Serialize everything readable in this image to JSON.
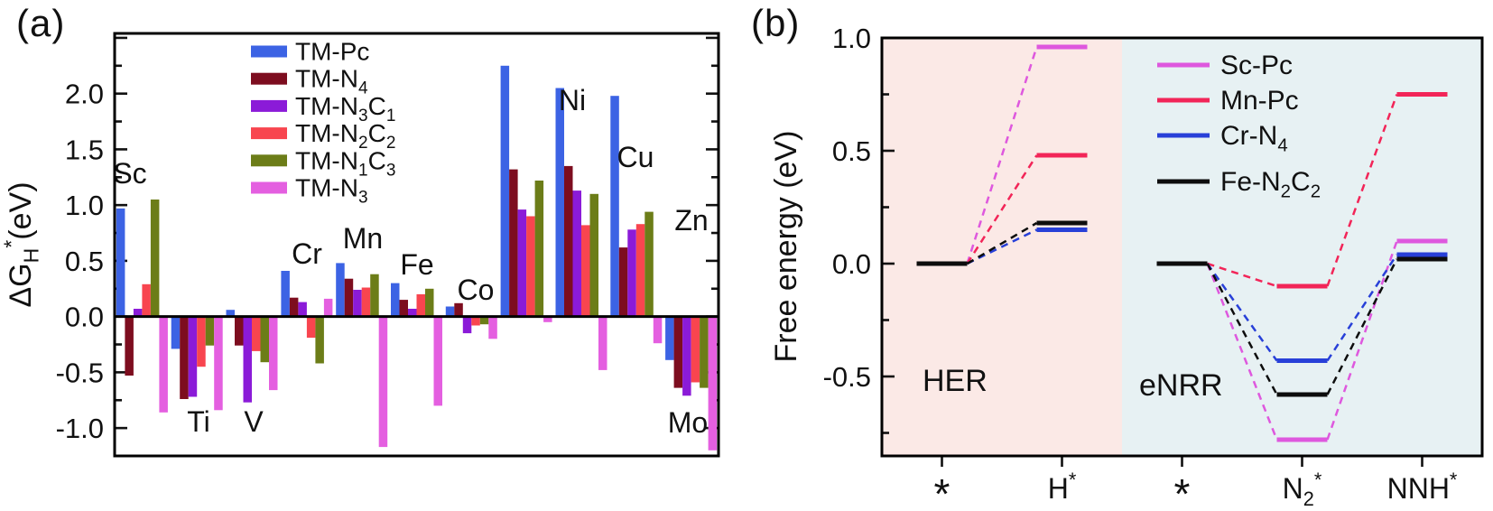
{
  "figure": {
    "panel_a": {
      "letter": "(a)"
    },
    "panel_b": {
      "letter": "(b)"
    }
  },
  "chart_data": [
    {
      "id": "panel-a",
      "type": "bar",
      "title": "",
      "xlabel": "",
      "ylabel": "ΔG_H^*(eV)",
      "ylim": [
        -1.25,
        2.54
      ],
      "yticks_labeled": [
        2.0,
        1.5,
        1.0,
        0.5,
        0.0,
        -0.5,
        -1.0
      ],
      "minor_tick_step": 0.25,
      "legend_position": "top-left-inside",
      "categories": [
        "Sc",
        "Ti",
        "V",
        "Cr",
        "Mn",
        "Fe",
        "Co",
        "Ni",
        "Cu",
        "Zn",
        "Mo"
      ],
      "series": [
        {
          "name": "TM-Pc",
          "color": "#3c63e4",
          "values": [
            0.97,
            -0.29,
            0.06,
            0.41,
            0.48,
            0.3,
            0.09,
            2.25,
            2.05,
            1.98,
            -0.39
          ]
        },
        {
          "name": "TM-N_4",
          "color": "#7d0d1f",
          "values": [
            -0.53,
            -0.74,
            -0.26,
            0.17,
            0.34,
            0.15,
            0.12,
            1.32,
            1.35,
            0.62,
            -0.64
          ]
        },
        {
          "name": "TM-N_3C_1",
          "color": "#8b1bd8",
          "values": [
            0.07,
            -0.72,
            -0.77,
            0.13,
            0.24,
            0.07,
            -0.15,
            0.96,
            1.13,
            0.78,
            -0.71
          ]
        },
        {
          "name": "TM-N_2C_2",
          "color": "#f8454f",
          "values": [
            0.29,
            -0.45,
            -0.31,
            -0.19,
            0.26,
            0.2,
            -0.08,
            0.9,
            0.82,
            0.83,
            -0.59
          ]
        },
        {
          "name": "TM-N_1C_3",
          "color": "#6c7d18",
          "values": [
            1.05,
            -0.26,
            -0.41,
            -0.42,
            0.38,
            0.25,
            -0.07,
            1.22,
            1.1,
            0.94,
            -0.64
          ]
        },
        {
          "name": "TM-N_3",
          "color": "#e45fe0",
          "values": [
            -0.86,
            -0.84,
            -0.66,
            0.16,
            -1.17,
            -0.8,
            -0.2,
            -0.05,
            -0.48,
            -0.24,
            -1.2
          ]
        }
      ]
    },
    {
      "id": "panel-b",
      "type": "line",
      "subtype": "free-energy-level-diagram",
      "title": "",
      "ylabel": "Free energy (eV)",
      "ylim": [
        -0.852,
        1.0
      ],
      "yticks_labeled": [
        1.0,
        0.5,
        0.0,
        -0.5
      ],
      "minor_tick_step": 0.25,
      "x_categories": [
        "*",
        "H^*",
        "*",
        "N_2^*",
        "NNH^*"
      ],
      "paths": [
        [
          0,
          1
        ],
        [
          2,
          3,
          4
        ]
      ],
      "regions": [
        {
          "label": "HER",
          "color": "#fbe9e6",
          "span": [
            0,
            2
          ]
        },
        {
          "label": "eNRR",
          "color": "#e7f1f3",
          "span": [
            2,
            5
          ]
        }
      ],
      "series": [
        {
          "name": "Sc-Pc",
          "color": "#de58de",
          "levels": [
            0.0,
            0.96,
            0.0,
            -0.78,
            0.1
          ]
        },
        {
          "name": "Mn-Pc",
          "color": "#f22558",
          "levels": [
            0.0,
            0.48,
            0.0,
            -0.1,
            0.75
          ]
        },
        {
          "name": "Cr-N_4",
          "color": "#2840d8",
          "levels": [
            0.0,
            0.15,
            0.0,
            -0.43,
            0.04
          ]
        },
        {
          "name": "Fe-N_2C_2",
          "color": "#0d0d0d",
          "levels": [
            0.0,
            0.18,
            0.0,
            -0.58,
            0.02
          ]
        }
      ]
    }
  ]
}
